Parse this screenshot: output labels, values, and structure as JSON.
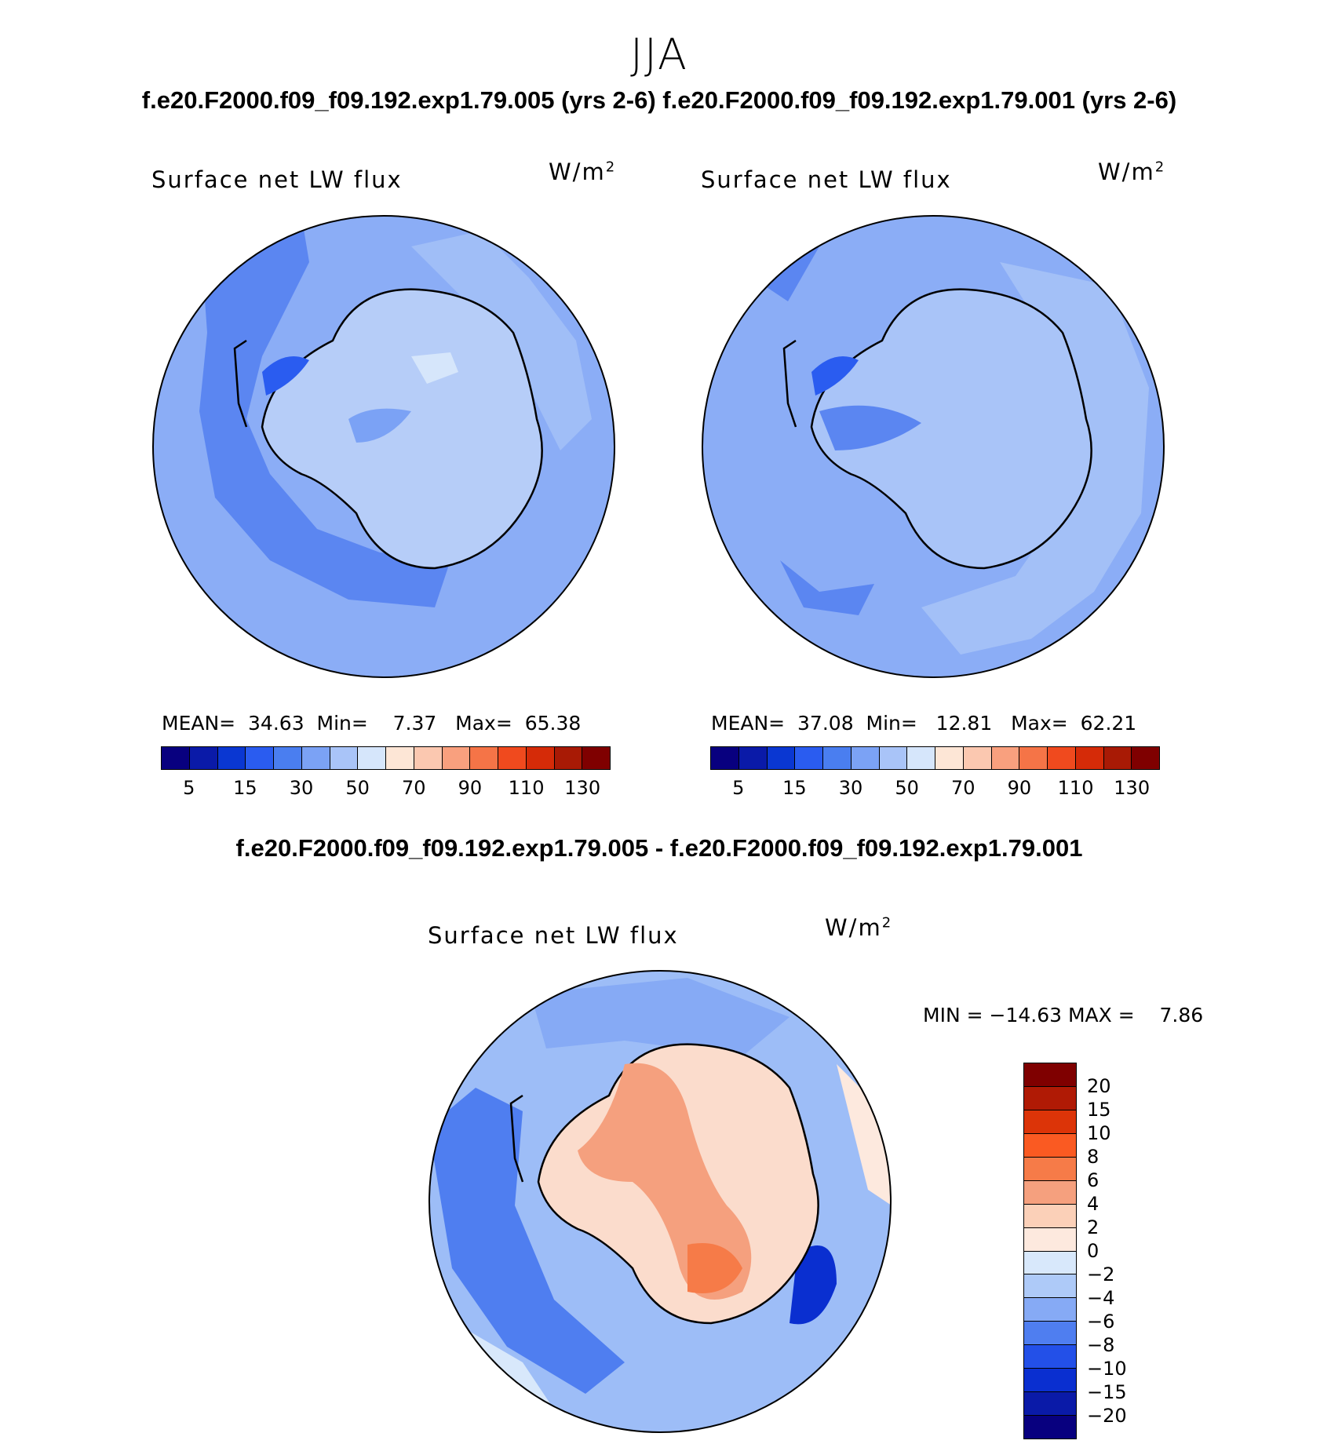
{
  "figure": {
    "season": "JJA",
    "case_title": "f.e20.F2000.f09_f09.192.exp1.79.005 (yrs 2-6) f.e20.F2000.f09_f09.192.exp1.79.001 (yrs 2-6)",
    "diff_title": "f.e20.F2000.f09_f09.192.exp1.79.005 - f.e20.F2000.f09_f09.192.exp1.79.001"
  },
  "panels": [
    {
      "title": "Surface net LW flux",
      "units_base": "W/m",
      "units_exp": "2",
      "mean_label": "MEAN=",
      "mean_value": "34.63",
      "min_label": "Min=",
      "min_value": "7.37",
      "max_label": "Max=",
      "max_value": "65.38"
    },
    {
      "title": "Surface net LW flux",
      "units_base": "W/m",
      "units_exp": "2",
      "mean_label": "MEAN=",
      "mean_value": "37.08",
      "min_label": "Min=",
      "min_value": "12.81",
      "max_label": "Max=",
      "max_value": "62.21"
    },
    {
      "title": "Surface net LW flux",
      "units_base": "W/m",
      "units_exp": "2",
      "min_label": "MIN =",
      "min_value": "−14.63",
      "max_label": "MAX =",
      "max_value": "7.86"
    }
  ],
  "colorbar_main": {
    "colors": [
      "#08007f",
      "#0a1aa8",
      "#0a37d2",
      "#2a5cf0",
      "#4a7ef0",
      "#7ba2f5",
      "#a9c4f8",
      "#d6e6fb",
      "#fde6d6",
      "#fbc8b0",
      "#f9a07e",
      "#f57447",
      "#f04a1e",
      "#d52b08",
      "#a81a05",
      "#7f0000"
    ],
    "labels": [
      "5",
      "15",
      "30",
      "50",
      "70",
      "90",
      "110",
      "130"
    ]
  },
  "colorbar_diff": {
    "colors": [
      "#7f0000",
      "#b01a05",
      "#dc3408",
      "#fa5a22",
      "#f67b48",
      "#f5a07e",
      "#fbd0b8",
      "#fde9de",
      "#d8e8fb",
      "#aecaf8",
      "#86aaf5",
      "#4f7ef0",
      "#2350e8",
      "#0a2fd0",
      "#0a1aa8",
      "#08007f"
    ],
    "labels": [
      "20",
      "15",
      "10",
      "8",
      "6",
      "4",
      "2",
      "0",
      "−2",
      "−4",
      "−6",
      "−8",
      "−10",
      "−15",
      "−20"
    ]
  },
  "colors": {
    "ocean_main": "#8badf6",
    "ocean_dark": "#5b86f1",
    "land_light": "#b6cdf8",
    "diff_ocean": "#9dbdf7",
    "diff_land": "#fbdccc"
  }
}
